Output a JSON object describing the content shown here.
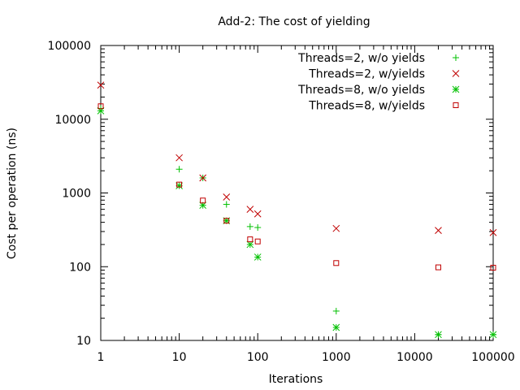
{
  "chart_data": {
    "type": "scatter",
    "title": "Add-2: The cost of yielding",
    "xlabel": "Iterations",
    "ylabel": "Cost per operation (ns)",
    "xscale": "log",
    "yscale": "log",
    "xlim": [
      1,
      100000
    ],
    "ylim": [
      10,
      100000
    ],
    "xticks": [
      {
        "value": 1,
        "label": "1"
      },
      {
        "value": 10,
        "label": "10"
      },
      {
        "value": 100,
        "label": "100"
      },
      {
        "value": 1000,
        "label": "1000"
      },
      {
        "value": 10000,
        "label": "10000"
      },
      {
        "value": 100000,
        "label": "100000"
      }
    ],
    "yticks": [
      {
        "value": 10,
        "label": "10"
      },
      {
        "value": 100,
        "label": "100"
      },
      {
        "value": 1000,
        "label": "1000"
      },
      {
        "value": 10000,
        "label": "10000"
      },
      {
        "value": 100000,
        "label": "100000"
      }
    ],
    "grid": false,
    "legend_position": "top-right",
    "series": [
      {
        "name": "Threads=2, w/o yields",
        "marker": "plus",
        "color": "#00c000",
        "points": [
          [
            1,
            14000
          ],
          [
            10,
            2100
          ],
          [
            20,
            1600
          ],
          [
            40,
            700
          ],
          [
            80,
            350
          ],
          [
            100,
            340
          ],
          [
            1000,
            25
          ],
          [
            20000,
            12
          ],
          [
            100000,
            12
          ]
        ]
      },
      {
        "name": "Threads=2, w/yields",
        "marker": "cross",
        "color": "#c00000",
        "points": [
          [
            1,
            29000
          ],
          [
            10,
            3000
          ],
          [
            20,
            1600
          ],
          [
            40,
            880
          ],
          [
            80,
            600
          ],
          [
            100,
            520
          ],
          [
            1000,
            330
          ],
          [
            20000,
            310
          ],
          [
            100000,
            290
          ]
        ]
      },
      {
        "name": "Threads=8, w/o yields",
        "marker": "star",
        "color": "#00c000",
        "points": [
          [
            1,
            13000
          ],
          [
            10,
            1250
          ],
          [
            20,
            680
          ],
          [
            40,
            420
          ],
          [
            80,
            200
          ],
          [
            100,
            135
          ],
          [
            1000,
            15
          ],
          [
            20000,
            12
          ],
          [
            100000,
            12
          ]
        ]
      },
      {
        "name": "Threads=8, w/yields",
        "marker": "square",
        "color": "#c00000",
        "points": [
          [
            1,
            15000
          ],
          [
            10,
            1300
          ],
          [
            20,
            790
          ],
          [
            40,
            420
          ],
          [
            80,
            235
          ],
          [
            100,
            220
          ],
          [
            1000,
            112
          ],
          [
            20000,
            98
          ],
          [
            100000,
            97
          ]
        ]
      }
    ]
  }
}
